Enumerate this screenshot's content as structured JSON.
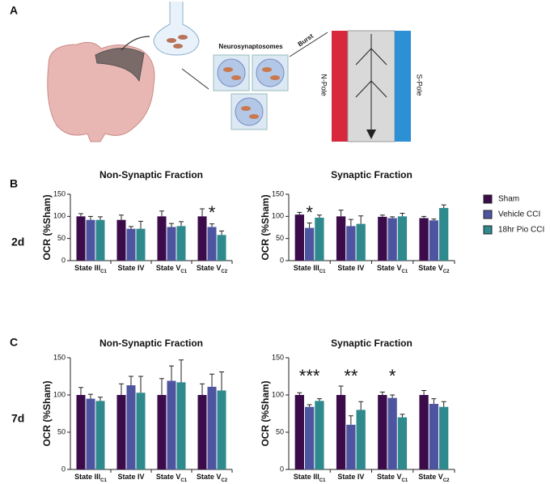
{
  "panel_labels": [
    "A",
    "B",
    "C"
  ],
  "row_labels": [
    "2d",
    "7d"
  ],
  "diagram": {
    "title": "Neurosynaptosomes",
    "arrow_label": "Burst",
    "left_pole": "N-Pole",
    "right_pole": "S-Pole"
  },
  "chart_data": [
    {
      "type": "bar",
      "title": "Non-Synaptic Fraction",
      "ylabel": "OCR (%Sham)",
      "categories": [
        "State III",
        "State IV",
        "State V",
        "State V"
      ],
      "category_subscripts": [
        "C1",
        null,
        "C1",
        "C2"
      ],
      "ylim": [
        0,
        150
      ],
      "yticks": [
        0,
        50,
        100,
        150
      ],
      "series": [
        {
          "color": "#3b0b4a",
          "values": [
            100,
            92,
            100,
            100
          ],
          "errors": [
            6,
            11,
            12,
            17
          ]
        },
        {
          "color": "#4e55a0",
          "values": [
            92,
            72,
            76,
            76
          ],
          "errors": [
            8,
            5,
            8,
            7
          ]
        },
        {
          "color": "#2f8a8e",
          "values": [
            92,
            72,
            78,
            58
          ],
          "errors": [
            7,
            17,
            10,
            9
          ]
        }
      ],
      "annotations": [
        {
          "text": "*",
          "category": 3
        }
      ]
    },
    {
      "type": "bar",
      "title": "Synaptic Fraction",
      "ylabel": "OCR (%Sham)",
      "categories": [
        "State III",
        "State IV",
        "State V",
        "State V"
      ],
      "category_subscripts": [
        "C1",
        null,
        "C1",
        "C2"
      ],
      "ylim": [
        0,
        150
      ],
      "yticks": [
        0,
        50,
        100,
        150
      ],
      "legend": "right",
      "series": [
        {
          "name": "Sham",
          "color": "#3b0b4a",
          "values": [
            104,
            100,
            99,
            96
          ],
          "errors": [
            5,
            14,
            4,
            4
          ]
        },
        {
          "name": "Vehicle CCI",
          "color": "#4e55a0",
          "values": [
            74,
            78,
            96,
            91
          ],
          "errors": [
            11,
            15,
            3,
            3
          ]
        },
        {
          "name": "18hr Pio CCI",
          "color": "#2f8a8e",
          "values": [
            97,
            83,
            100,
            119
          ],
          "errors": [
            6,
            18,
            7,
            7
          ]
        }
      ],
      "annotations": [
        {
          "text": "*",
          "category": 0
        }
      ]
    },
    {
      "type": "bar",
      "title": "Non-Synaptic Fraction",
      "ylabel": "OCR (%Sham)",
      "categories": [
        "State III",
        "State IV",
        "State V",
        "State V"
      ],
      "category_subscripts": [
        "C1",
        null,
        "C1",
        "C2"
      ],
      "ylim": [
        0,
        150
      ],
      "yticks": [
        0,
        50,
        100,
        150
      ],
      "series": [
        {
          "color": "#3b0b4a",
          "values": [
            100,
            100,
            100,
            100
          ],
          "errors": [
            10,
            15,
            22,
            15
          ]
        },
        {
          "color": "#4e55a0",
          "values": [
            95,
            113,
            119,
            111
          ],
          "errors": [
            6,
            12,
            20,
            17
          ]
        },
        {
          "color": "#2f8a8e",
          "values": [
            92,
            103,
            117,
            106
          ],
          "errors": [
            5,
            22,
            30,
            25
          ]
        }
      ]
    },
    {
      "type": "bar",
      "title": "Synaptic Fraction",
      "ylabel": "OCR (%Sham)",
      "categories": [
        "State III",
        "State IV",
        "State V",
        "State V"
      ],
      "category_subscripts": [
        "C1",
        null,
        "C1",
        "C2"
      ],
      "ylim": [
        0,
        150
      ],
      "yticks": [
        0,
        50,
        100,
        150
      ],
      "series": [
        {
          "color": "#3b0b4a",
          "values": [
            100,
            100,
            100,
            100
          ],
          "errors": [
            3,
            12,
            4,
            6
          ]
        },
        {
          "color": "#4e55a0",
          "values": [
            84,
            60,
            96,
            88
          ],
          "errors": [
            3,
            12,
            4,
            7
          ]
        },
        {
          "color": "#2f8a8e",
          "values": [
            92,
            80,
            70,
            84
          ],
          "errors": [
            3,
            11,
            4,
            7
          ]
        }
      ],
      "annotations": [
        {
          "text": "***",
          "category": 0
        },
        {
          "text": "**",
          "category": 1
        },
        {
          "text": "*",
          "category": 2
        }
      ]
    }
  ]
}
